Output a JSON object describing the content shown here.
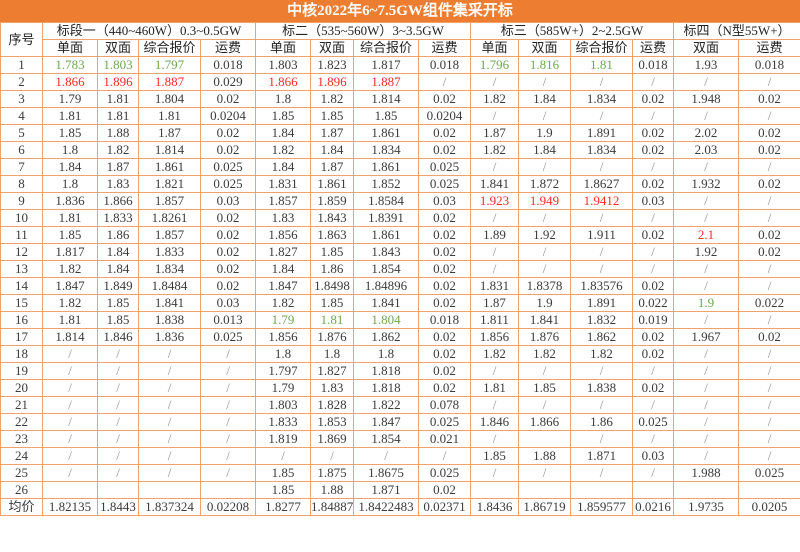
{
  "title": "中核2022年6~7.5GW组件集采开标",
  "colors": {
    "title_bg": "#ED7D31",
    "border": "#F0A269",
    "highlight": "#F8CBAD",
    "green": "#6BA84F",
    "red": "#FF2A2A",
    "slash": "#909090",
    "text": "#3B3B3B"
  },
  "chart_data": {
    "type": "table",
    "index_header": "序号",
    "groups": [
      {
        "label": "标段一（440~460W）0.3~0.5GW",
        "subs": [
          "单面",
          "双面",
          "综合报价",
          "运费"
        ]
      },
      {
        "label": "标二（535~560W）3~3.5GW",
        "subs": [
          "单面",
          "双面",
          "综合报价",
          "运费"
        ]
      },
      {
        "label": "标三（585W+）2~2.5GW",
        "subs": [
          "单面",
          "双面",
          "综合报价",
          "运费"
        ]
      },
      {
        "label": "标四（N型55W+）",
        "subs": [
          "双面",
          "运费"
        ]
      }
    ],
    "highlighted_rows": [
      2,
      8,
      12,
      14,
      15,
      17
    ],
    "rows": [
      {
        "no": "1",
        "cells": [
          [
            "1.783",
            "g"
          ],
          [
            "1.803",
            "g"
          ],
          [
            "1.797",
            "g"
          ],
          [
            "0.018"
          ],
          [
            "1.803"
          ],
          [
            "1.823"
          ],
          [
            "1.817"
          ],
          [
            "0.018"
          ],
          [
            "1.796",
            "g"
          ],
          [
            "1.816",
            "g"
          ],
          [
            "1.81",
            "g"
          ],
          [
            "0.018"
          ],
          [
            "1.93"
          ],
          [
            "0.018"
          ]
        ]
      },
      {
        "no": "2",
        "cells": [
          [
            "1.866",
            "r"
          ],
          [
            "1.896",
            "r"
          ],
          [
            "1.887",
            "r"
          ],
          [
            "0.029"
          ],
          [
            "1.866",
            "r"
          ],
          [
            "1.896",
            "r"
          ],
          [
            "1.887",
            "r"
          ],
          [
            "/"
          ],
          [
            "/"
          ],
          [
            "/"
          ],
          [
            "/"
          ],
          [
            "/"
          ],
          [
            "/"
          ],
          [
            "/"
          ]
        ]
      },
      {
        "no": "3",
        "cells": [
          [
            "1.79"
          ],
          [
            "1.81"
          ],
          [
            "1.804"
          ],
          [
            "0.02"
          ],
          [
            "1.8"
          ],
          [
            "1.82"
          ],
          [
            "1.814"
          ],
          [
            "0.02"
          ],
          [
            "1.82"
          ],
          [
            "1.84"
          ],
          [
            "1.834"
          ],
          [
            "0.02"
          ],
          [
            "1.948"
          ],
          [
            "0.02"
          ]
        ]
      },
      {
        "no": "4",
        "cells": [
          [
            "1.81"
          ],
          [
            "1.81"
          ],
          [
            "1.81"
          ],
          [
            "0.0204"
          ],
          [
            "1.85"
          ],
          [
            "1.85"
          ],
          [
            "1.85"
          ],
          [
            "0.0204"
          ],
          [
            "/"
          ],
          [
            "/"
          ],
          [
            "/"
          ],
          [
            "/"
          ],
          [
            "/"
          ],
          [
            "/"
          ]
        ]
      },
      {
        "no": "5",
        "cells": [
          [
            "1.85"
          ],
          [
            "1.88"
          ],
          [
            "1.87"
          ],
          [
            "0.02"
          ],
          [
            "1.84"
          ],
          [
            "1.87"
          ],
          [
            "1.861"
          ],
          [
            "0.02"
          ],
          [
            "1.87"
          ],
          [
            "1.9"
          ],
          [
            "1.891"
          ],
          [
            "0.02"
          ],
          [
            "2.02"
          ],
          [
            "0.02"
          ]
        ]
      },
      {
        "no": "6",
        "cells": [
          [
            "1.8"
          ],
          [
            "1.82"
          ],
          [
            "1.814"
          ],
          [
            "0.02"
          ],
          [
            "1.82"
          ],
          [
            "1.84"
          ],
          [
            "1.834"
          ],
          [
            "0.02"
          ],
          [
            "1.82"
          ],
          [
            "1.84"
          ],
          [
            "1.834"
          ],
          [
            "0.02"
          ],
          [
            "2.03"
          ],
          [
            "0.02"
          ]
        ]
      },
      {
        "no": "7",
        "cells": [
          [
            "1.84"
          ],
          [
            "1.87"
          ],
          [
            "1.861"
          ],
          [
            "0.025"
          ],
          [
            "1.84"
          ],
          [
            "1.87"
          ],
          [
            "1.861"
          ],
          [
            "0.025"
          ],
          [
            "/"
          ],
          [
            "/"
          ],
          [
            "/"
          ],
          [
            "/"
          ],
          [
            "/"
          ],
          [
            "/"
          ]
        ]
      },
      {
        "no": "8",
        "cells": [
          [
            "1.8"
          ],
          [
            "1.83"
          ],
          [
            "1.821"
          ],
          [
            "0.025"
          ],
          [
            "1.831"
          ],
          [
            "1.861"
          ],
          [
            "1.852"
          ],
          [
            "0.025"
          ],
          [
            "1.841"
          ],
          [
            "1.872"
          ],
          [
            "1.8627"
          ],
          [
            "0.02"
          ],
          [
            "1.932"
          ],
          [
            "0.02"
          ]
        ]
      },
      {
        "no": "9",
        "cells": [
          [
            "1.836"
          ],
          [
            "1.866"
          ],
          [
            "1.857"
          ],
          [
            "0.03"
          ],
          [
            "1.857"
          ],
          [
            "1.859"
          ],
          [
            "1.8584"
          ],
          [
            "0.03"
          ],
          [
            "1.923",
            "r"
          ],
          [
            "1.949",
            "r"
          ],
          [
            "1.9412",
            "r"
          ],
          [
            "0.03"
          ],
          [
            "/"
          ],
          [
            "/"
          ]
        ]
      },
      {
        "no": "10",
        "cells": [
          [
            "1.81"
          ],
          [
            "1.833"
          ],
          [
            "1.8261"
          ],
          [
            "0.02"
          ],
          [
            "1.83"
          ],
          [
            "1.843"
          ],
          [
            "1.8391"
          ],
          [
            "0.02"
          ],
          [
            "/"
          ],
          [
            "/"
          ],
          [
            "/"
          ],
          [
            "/"
          ],
          [
            "/"
          ],
          [
            "/"
          ]
        ]
      },
      {
        "no": "11",
        "cells": [
          [
            "1.85"
          ],
          [
            "1.86"
          ],
          [
            "1.857"
          ],
          [
            "0.02"
          ],
          [
            "1.856"
          ],
          [
            "1.863"
          ],
          [
            "1.861"
          ],
          [
            "0.02"
          ],
          [
            "1.89"
          ],
          [
            "1.92"
          ],
          [
            "1.911"
          ],
          [
            "0.02"
          ],
          [
            "2.1",
            "r"
          ],
          [
            "0.02"
          ]
        ]
      },
      {
        "no": "12",
        "cells": [
          [
            "1.817"
          ],
          [
            "1.84"
          ],
          [
            "1.833"
          ],
          [
            "0.02"
          ],
          [
            "1.827"
          ],
          [
            "1.85"
          ],
          [
            "1.843"
          ],
          [
            "0.02"
          ],
          [
            "/"
          ],
          [
            "/"
          ],
          [
            "/"
          ],
          [
            "/"
          ],
          [
            "1.92"
          ],
          [
            "0.02"
          ]
        ]
      },
      {
        "no": "13",
        "cells": [
          [
            "1.82"
          ],
          [
            "1.84"
          ],
          [
            "1.834"
          ],
          [
            "0.02"
          ],
          [
            "1.84"
          ],
          [
            "1.86"
          ],
          [
            "1.854"
          ],
          [
            "0.02"
          ],
          [
            "/"
          ],
          [
            "/"
          ],
          [
            "/"
          ],
          [
            "/"
          ],
          [
            "/"
          ],
          [
            "/"
          ]
        ]
      },
      {
        "no": "14",
        "cells": [
          [
            "1.847"
          ],
          [
            "1.849"
          ],
          [
            "1.8484"
          ],
          [
            "0.02"
          ],
          [
            "1.847"
          ],
          [
            "1.8498"
          ],
          [
            "1.84896"
          ],
          [
            "0.02"
          ],
          [
            "1.831"
          ],
          [
            "1.8378"
          ],
          [
            "1.83576"
          ],
          [
            "0.02"
          ],
          [
            "/"
          ],
          [
            "/"
          ]
        ]
      },
      {
        "no": "15",
        "cells": [
          [
            "1.82"
          ],
          [
            "1.85"
          ],
          [
            "1.841"
          ],
          [
            "0.03"
          ],
          [
            "1.82"
          ],
          [
            "1.85"
          ],
          [
            "1.841"
          ],
          [
            "0.02"
          ],
          [
            "1.87"
          ],
          [
            "1.9"
          ],
          [
            "1.891"
          ],
          [
            "0.022"
          ],
          [
            "1.9",
            "g"
          ],
          [
            "0.022"
          ]
        ]
      },
      {
        "no": "16",
        "cells": [
          [
            "1.81"
          ],
          [
            "1.85"
          ],
          [
            "1.838"
          ],
          [
            "0.013"
          ],
          [
            "1.79",
            "g"
          ],
          [
            "1.81",
            "g"
          ],
          [
            "1.804",
            "g"
          ],
          [
            "0.018"
          ],
          [
            "1.811"
          ],
          [
            "1.841"
          ],
          [
            "1.832"
          ],
          [
            "0.019"
          ],
          [
            "/"
          ],
          [
            "/"
          ]
        ]
      },
      {
        "no": "17",
        "cells": [
          [
            "1.814"
          ],
          [
            "1.846"
          ],
          [
            "1.836"
          ],
          [
            "0.025"
          ],
          [
            "1.856"
          ],
          [
            "1.876"
          ],
          [
            "1.862"
          ],
          [
            "0.02"
          ],
          [
            "1.856"
          ],
          [
            "1.876"
          ],
          [
            "1.862"
          ],
          [
            "0.02"
          ],
          [
            "1.967"
          ],
          [
            "0.02"
          ]
        ]
      },
      {
        "no": "18",
        "cells": [
          [
            "/"
          ],
          [
            "/"
          ],
          [
            "/"
          ],
          [
            "/"
          ],
          [
            "1.8"
          ],
          [
            "1.8"
          ],
          [
            "1.8"
          ],
          [
            "0.02"
          ],
          [
            "1.82"
          ],
          [
            "1.82"
          ],
          [
            "1.82"
          ],
          [
            "0.02"
          ],
          [
            "/"
          ],
          [
            "/"
          ]
        ]
      },
      {
        "no": "19",
        "cells": [
          [
            "/"
          ],
          [
            "/"
          ],
          [
            "/"
          ],
          [
            "/"
          ],
          [
            "1.797"
          ],
          [
            "1.827"
          ],
          [
            "1.818"
          ],
          [
            "0.02"
          ],
          [
            "/"
          ],
          [
            "/"
          ],
          [
            "/"
          ],
          [
            "/"
          ],
          [
            "/"
          ],
          [
            "/"
          ]
        ]
      },
      {
        "no": "20",
        "cells": [
          [
            "/"
          ],
          [
            "/"
          ],
          [
            "/"
          ],
          [
            "/"
          ],
          [
            "1.79"
          ],
          [
            "1.83"
          ],
          [
            "1.818"
          ],
          [
            "0.02"
          ],
          [
            "1.81"
          ],
          [
            "1.85"
          ],
          [
            "1.838"
          ],
          [
            "0.02"
          ],
          [
            "/"
          ],
          [
            "/"
          ]
        ]
      },
      {
        "no": "21",
        "cells": [
          [
            "/"
          ],
          [
            "/"
          ],
          [
            "/"
          ],
          [
            "/"
          ],
          [
            "1.803"
          ],
          [
            "1.828"
          ],
          [
            "1.822"
          ],
          [
            "0.078"
          ],
          [
            "/"
          ],
          [
            "/"
          ],
          [
            "/"
          ],
          [
            "/"
          ],
          [
            "/"
          ],
          [
            "/"
          ]
        ]
      },
      {
        "no": "22",
        "cells": [
          [
            "/"
          ],
          [
            "/"
          ],
          [
            "/"
          ],
          [
            "/"
          ],
          [
            "1.833"
          ],
          [
            "1.853"
          ],
          [
            "1.847"
          ],
          [
            "0.025"
          ],
          [
            "1.846"
          ],
          [
            "1.866"
          ],
          [
            "1.86"
          ],
          [
            "0.025"
          ],
          [
            "/"
          ],
          [
            "/"
          ]
        ]
      },
      {
        "no": "23",
        "cells": [
          [
            "/"
          ],
          [
            "/"
          ],
          [
            "/"
          ],
          [
            "/"
          ],
          [
            "1.819"
          ],
          [
            "1.869"
          ],
          [
            "1.854"
          ],
          [
            "0.021"
          ],
          [
            "/"
          ],
          [
            ""
          ],
          [
            "/"
          ],
          [
            "/"
          ],
          [
            "/"
          ],
          [
            "/"
          ]
        ]
      },
      {
        "no": "24",
        "cells": [
          [
            "/"
          ],
          [
            "/"
          ],
          [
            "/"
          ],
          [
            "/"
          ],
          [
            "/"
          ],
          [
            "/"
          ],
          [
            "/"
          ],
          [
            "/"
          ],
          [
            "1.85"
          ],
          [
            "1.88"
          ],
          [
            "1.871"
          ],
          [
            "0.03"
          ],
          [
            "/"
          ],
          [
            "/"
          ]
        ]
      },
      {
        "no": "25",
        "cells": [
          [
            "/"
          ],
          [
            "/"
          ],
          [
            "/"
          ],
          [
            "/"
          ],
          [
            "1.85"
          ],
          [
            "1.875"
          ],
          [
            "1.8675"
          ],
          [
            "0.025"
          ],
          [
            "/"
          ],
          [
            "/"
          ],
          [
            "/"
          ],
          [
            "/"
          ],
          [
            "1.988"
          ],
          [
            "0.025"
          ]
        ]
      },
      {
        "no": "26",
        "cells": [
          [
            ""
          ],
          [
            ""
          ],
          [
            ""
          ],
          [
            ""
          ],
          [
            "1.85"
          ],
          [
            "1.88"
          ],
          [
            "1.871"
          ],
          [
            "0.02"
          ],
          [
            ""
          ],
          [
            ""
          ],
          [
            ""
          ],
          [
            ""
          ],
          [
            ""
          ],
          [
            ""
          ]
        ]
      }
    ],
    "average_row": {
      "no": "均价",
      "cells": [
        [
          "1.82135"
        ],
        [
          "1.8443"
        ],
        [
          "1.837324"
        ],
        [
          "0.02208"
        ],
        [
          "1.8277"
        ],
        [
          "1.84887"
        ],
        [
          "1.8422483"
        ],
        [
          "0.02371"
        ],
        [
          "1.8436"
        ],
        [
          "1.86719"
        ],
        [
          "1.859577"
        ],
        [
          "0.0216"
        ],
        [
          "1.9735"
        ],
        [
          "0.0205"
        ]
      ]
    }
  }
}
